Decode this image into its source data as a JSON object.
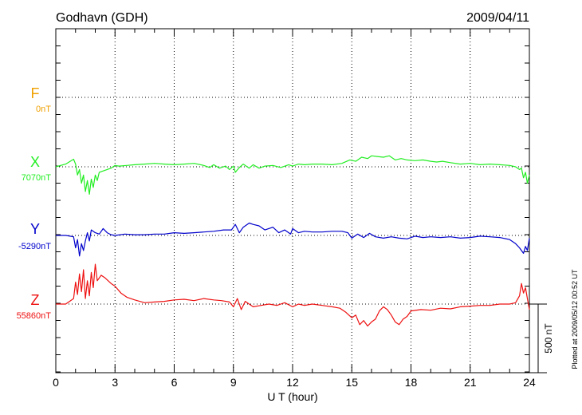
{
  "chart_data": {
    "type": "line",
    "station": "Godhavn (GDH)",
    "date": "2009/04/11",
    "xlabel": "U T (hour)",
    "xlim": [
      0,
      24
    ],
    "xticks": [
      "0",
      "3",
      "6",
      "9",
      "12",
      "15",
      "18",
      "21",
      "24"
    ],
    "scale_label": "500 nT",
    "plotted_note": "Plotted at 2009/05/12 00:52 UT",
    "grid": true,
    "series": [
      {
        "name": "F",
        "baseline_label": "0nT",
        "color": "#f0a000",
        "x": [],
        "y": []
      },
      {
        "name": "X",
        "baseline_label": "7070nT",
        "color": "#22ee22",
        "x": [
          0,
          0.5,
          0.9,
          1.0,
          1.1,
          1.2,
          1.3,
          1.4,
          1.5,
          1.6,
          1.7,
          1.8,
          1.9,
          2.0,
          2.1,
          2.2,
          2.4,
          2.6,
          2.8,
          3.0,
          3.2,
          3.6,
          4.0,
          4.5,
          5.0,
          5.5,
          6.0,
          6.5,
          7.0,
          7.5,
          7.8,
          8.0,
          8.3,
          8.6,
          8.8,
          9.0,
          9.1,
          9.3,
          9.5,
          9.8,
          10.0,
          10.3,
          10.6,
          11.0,
          11.4,
          11.8,
          12.0,
          12.3,
          12.6,
          13.0,
          13.5,
          14.0,
          14.5,
          14.9,
          15.2,
          15.5,
          15.8,
          16.0,
          16.3,
          16.6,
          16.9,
          17.2,
          17.5,
          17.8,
          18.2,
          18.6,
          19.0,
          19.3,
          19.6,
          20.0,
          20.5,
          21.0,
          21.5,
          22.0,
          22.5,
          23.0,
          23.3,
          23.5,
          23.6,
          23.7,
          23.8,
          23.9,
          24.0
        ],
        "y": [
          0,
          20,
          55,
          20,
          -60,
          -20,
          -120,
          -60,
          -180,
          -100,
          -200,
          -90,
          -150,
          -60,
          -100,
          -40,
          -30,
          -20,
          -10,
          10,
          5,
          10,
          15,
          20,
          25,
          20,
          15,
          20,
          25,
          10,
          -5,
          15,
          -10,
          5,
          -20,
          5,
          -40,
          -5,
          20,
          -10,
          15,
          -10,
          5,
          10,
          -5,
          15,
          5,
          20,
          15,
          20,
          20,
          15,
          25,
          50,
          40,
          70,
          60,
          80,
          75,
          70,
          80,
          50,
          60,
          50,
          45,
          50,
          40,
          35,
          40,
          30,
          20,
          25,
          15,
          20,
          15,
          10,
          0,
          -20,
          -10,
          -80,
          -40,
          -120,
          -60
        ]
      },
      {
        "name": "Y",
        "baseline_label": "-5290nT",
        "color": "#0000cc",
        "x": [
          0,
          0.5,
          0.9,
          1.0,
          1.1,
          1.2,
          1.3,
          1.4,
          1.5,
          1.6,
          1.7,
          1.8,
          2.0,
          2.2,
          2.4,
          2.6,
          2.8,
          3.0,
          3.5,
          4.0,
          4.5,
          5.0,
          5.5,
          6.0,
          6.5,
          7.0,
          7.5,
          8.0,
          8.5,
          8.9,
          9.1,
          9.3,
          9.5,
          9.8,
          10.0,
          10.3,
          10.6,
          11.0,
          11.3,
          11.6,
          11.9,
          12.0,
          12.3,
          12.6,
          13.0,
          13.5,
          14.0,
          14.5,
          14.8,
          15.0,
          15.3,
          15.6,
          15.9,
          16.2,
          16.6,
          17.0,
          17.4,
          17.8,
          18.2,
          18.6,
          19.0,
          19.5,
          20.0,
          20.5,
          21.0,
          21.5,
          22.0,
          22.5,
          23.0,
          23.3,
          23.5,
          23.7,
          23.8,
          23.9,
          24.0
        ],
        "y": [
          0,
          0,
          -10,
          -90,
          -30,
          -150,
          -60,
          -110,
          -40,
          20,
          -40,
          40,
          20,
          10,
          50,
          20,
          5,
          0,
          10,
          5,
          5,
          10,
          10,
          20,
          15,
          20,
          25,
          30,
          40,
          40,
          80,
          20,
          60,
          90,
          80,
          70,
          40,
          60,
          20,
          40,
          10,
          50,
          20,
          30,
          25,
          25,
          30,
          30,
          20,
          -20,
          10,
          -15,
          15,
          -10,
          -20,
          -10,
          -20,
          -25,
          -5,
          -15,
          -10,
          -15,
          -10,
          -20,
          -15,
          -5,
          -10,
          -15,
          -30,
          -60,
          -90,
          -130,
          -80,
          -110,
          -20
        ]
      },
      {
        "name": "Z",
        "baseline_label": "55860nT",
        "color": "#ee1111",
        "x": [
          0,
          0.5,
          0.9,
          1.0,
          1.1,
          1.2,
          1.3,
          1.4,
          1.5,
          1.6,
          1.7,
          1.8,
          1.9,
          2.0,
          2.1,
          2.3,
          2.5,
          2.8,
          3.0,
          3.3,
          3.6,
          4.0,
          4.5,
          5.0,
          5.5,
          6.0,
          6.5,
          7.0,
          7.5,
          8.0,
          8.4,
          8.8,
          9.0,
          9.2,
          9.4,
          9.6,
          10.0,
          10.4,
          10.8,
          11.2,
          11.6,
          12.0,
          12.3,
          12.6,
          13.0,
          13.5,
          14.0,
          14.4,
          14.7,
          15.0,
          15.2,
          15.4,
          15.6,
          15.8,
          16.0,
          16.2,
          16.4,
          16.6,
          16.8,
          17.0,
          17.2,
          17.4,
          17.6,
          17.8,
          18.0,
          18.5,
          19.0,
          19.5,
          20.0,
          20.5,
          21.0,
          21.5,
          22.0,
          22.5,
          23.0,
          23.3,
          23.5,
          23.6,
          23.7,
          23.8,
          23.9,
          24.0
        ],
        "y": [
          0,
          0,
          40,
          160,
          70,
          220,
          90,
          250,
          40,
          170,
          60,
          230,
          120,
          290,
          170,
          210,
          190,
          150,
          130,
          80,
          50,
          30,
          10,
          15,
          20,
          30,
          35,
          25,
          40,
          30,
          25,
          15,
          -20,
          40,
          -40,
          20,
          -20,
          -10,
          0,
          -10,
          10,
          -20,
          0,
          -10,
          0,
          -10,
          -20,
          -30,
          -60,
          -100,
          -80,
          -150,
          -120,
          -160,
          -130,
          -110,
          -50,
          -20,
          -40,
          -80,
          -130,
          -150,
          -110,
          -90,
          -50,
          -40,
          -45,
          -30,
          -35,
          -20,
          -15,
          -10,
          -10,
          0,
          0,
          10,
          60,
          150,
          80,
          120,
          40,
          -40
        ]
      }
    ]
  }
}
